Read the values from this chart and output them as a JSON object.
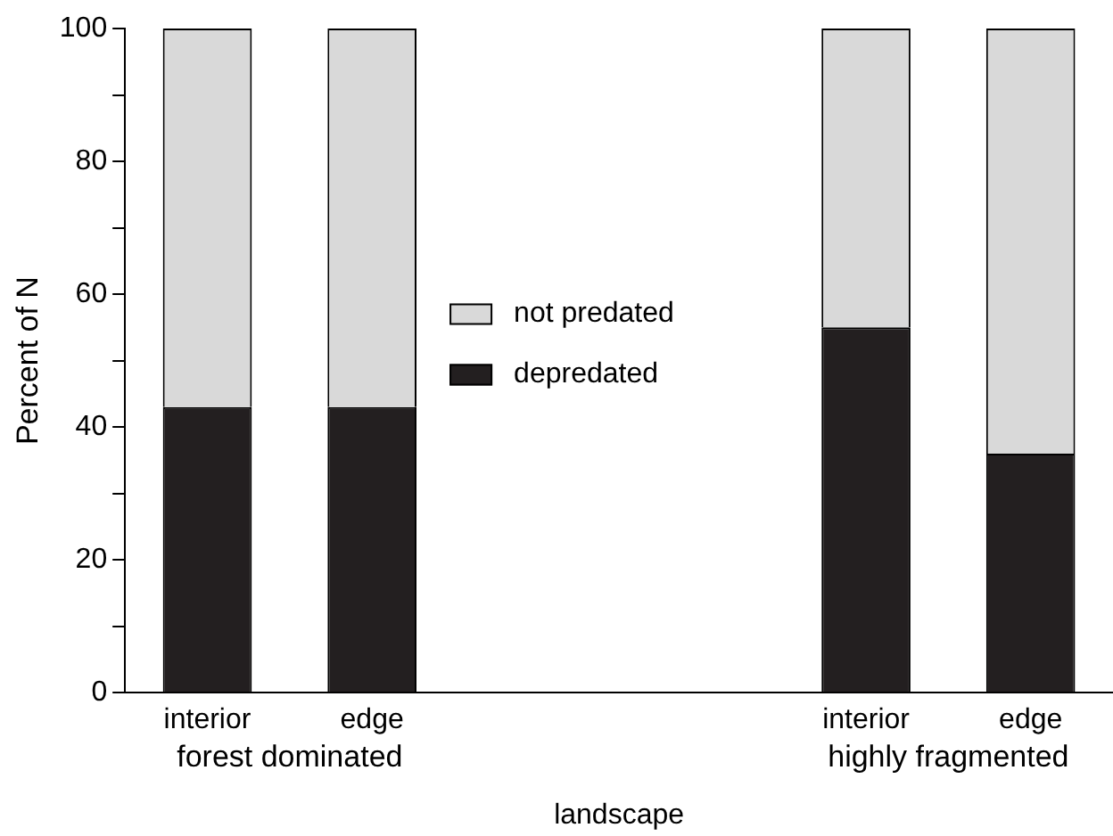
{
  "chart_data": {
    "type": "bar",
    "stacked": true,
    "xlabel": "landscape",
    "ylabel": "Percent of N",
    "categories": [
      "interior",
      "edge",
      null,
      null,
      "interior",
      "edge"
    ],
    "series": [
      {
        "name": "depredated",
        "color": "#231f20",
        "values": [
          43,
          43,
          null,
          null,
          55,
          36
        ]
      },
      {
        "name": "not predated",
        "color": "#d9d9d9",
        "values": [
          57,
          57,
          null,
          null,
          45,
          64
        ]
      }
    ],
    "annotations": [
      "forest dominated",
      "highly fragmented"
    ],
    "ylim": [
      0,
      100
    ],
    "yticks": [
      0,
      {
        "value": 10,
        "label": null
      },
      20,
      {
        "value": 30,
        "label": null
      },
      40,
      {
        "value": 50,
        "label": null
      },
      60,
      {
        "value": 70,
        "label": null
      },
      80,
      {
        "value": 90,
        "label": null
      },
      100
    ],
    "grid": false,
    "legend": "center"
  }
}
